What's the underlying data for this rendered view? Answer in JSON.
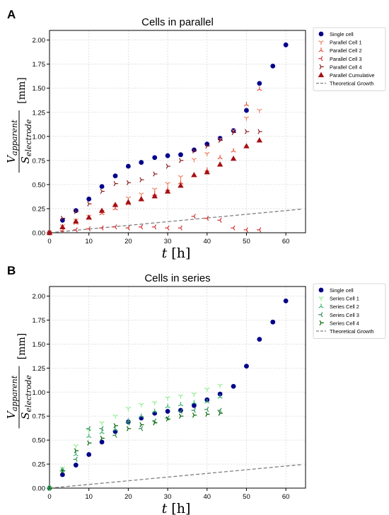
{
  "colors": {
    "single": "#00008b",
    "parallel_cell_1": "#f08060",
    "parallel_cell_2": "#e8503a",
    "parallel_cell_3": "#d32f2f",
    "parallel_cell_4": "#8b1a1a",
    "parallel_cumulative": "#a50f15",
    "series_cell_1": "#90ee90",
    "series_cell_2": "#3cb371",
    "series_cell_3": "#2e8b57",
    "series_cell_4": "#006400",
    "theory": "#808080",
    "grid": "#d9d9d9",
    "axis": "#000000"
  },
  "chart_data": [
    {
      "panel_label": "A",
      "type": "scatter",
      "title": "Cells in parallel",
      "ylabel_main": "V",
      "ylabel_num_sub": "apparent",
      "ylabel_den_main": "S",
      "ylabel_den_sub": "electrode",
      "ylabel_unit": "[mm]",
      "xlabel_main": "t",
      "xlabel_unit": "[h]",
      "xlim": [
        0,
        65
      ],
      "ylim": [
        0,
        2.1
      ],
      "xticks": [
        "0",
        "10",
        "20",
        "30",
        "40",
        "50",
        "60"
      ],
      "yticks": [
        "0.00",
        "0.25",
        "0.50",
        "0.75",
        "1.00",
        "1.25",
        "1.50",
        "1.75",
        "2.00"
      ],
      "grid": true,
      "legend_position": "right",
      "series": [
        {
          "name": "Single cell",
          "marker": "circle",
          "color_key": "single",
          "x": [
            0,
            3.3,
            6.7,
            10,
            13.3,
            16.7,
            20,
            23.3,
            26.7,
            30,
            33.3,
            36.7,
            40,
            43.3,
            46.7,
            50,
            53.3,
            56.7,
            60
          ],
          "y": [
            0,
            0.13,
            0.23,
            0.35,
            0.48,
            0.59,
            0.69,
            0.73,
            0.78,
            0.8,
            0.81,
            0.86,
            0.92,
            0.98,
            1.06,
            1.27,
            1.55,
            1.73,
            1.95
          ]
        },
        {
          "name": "Parallel Cell 1",
          "marker": "tri-down",
          "color_key": "parallel_cell_1",
          "x": [
            0,
            3.3,
            6.7,
            10,
            13.3,
            16.7,
            20,
            23.3,
            26.7,
            30,
            33.3,
            36.7,
            40,
            43.3,
            46.7,
            50,
            53.3
          ],
          "y": [
            0,
            0.07,
            0.13,
            0.17,
            0.22,
            0.28,
            0.36,
            0.4,
            0.45,
            0.51,
            0.58,
            0.76,
            0.82,
            0.97,
            1.06,
            1.19,
            1.27
          ]
        },
        {
          "name": "Parallel Cell 2",
          "marker": "tri-up",
          "color_key": "parallel_cell_2",
          "x": [
            0,
            3.3,
            6.7,
            10,
            13.3,
            16.7,
            20,
            23.3,
            26.7,
            30,
            33.3,
            36.7,
            40,
            43.3,
            46.7,
            50,
            53.3
          ],
          "y": [
            0,
            0.06,
            0.1,
            0.15,
            0.2,
            0.25,
            0.3,
            0.35,
            0.4,
            0.45,
            0.52,
            0.6,
            0.65,
            0.78,
            0.85,
            1.33,
            1.49
          ]
        },
        {
          "name": "Parallel Cell 3",
          "marker": "tri-left",
          "color_key": "parallel_cell_3",
          "x": [
            0,
            3.3,
            6.7,
            10,
            13.3,
            16.7,
            20,
            23.3,
            26.7,
            30,
            33.3,
            36.7,
            40,
            43.3,
            46.7,
            50,
            53.3
          ],
          "y": [
            0,
            0.02,
            0.03,
            0.04,
            0.05,
            0.06,
            0.05,
            0.06,
            0.06,
            0.05,
            0.05,
            0.17,
            0.15,
            0.13,
            0.05,
            0.03,
            0.03
          ]
        },
        {
          "name": "Parallel Cell 4",
          "marker": "tri-right",
          "color_key": "parallel_cell_4",
          "x": [
            0,
            3.3,
            6.7,
            10,
            13.3,
            16.7,
            20,
            23.3,
            26.7,
            30,
            33.3,
            36.7,
            40,
            43.3,
            46.7,
            50,
            53.3
          ],
          "y": [
            0,
            0.15,
            0.22,
            0.3,
            0.43,
            0.51,
            0.52,
            0.55,
            0.61,
            0.69,
            0.75,
            0.85,
            0.9,
            0.96,
            1.04,
            1.05,
            1.05
          ]
        },
        {
          "name": "Parallel Cumulative",
          "marker": "triangle",
          "color_key": "parallel_cumulative",
          "x": [
            0,
            3.3,
            6.7,
            10,
            13.3,
            16.7,
            20,
            23.3,
            26.7,
            30,
            33.3,
            36.7,
            40,
            43.3,
            46.7,
            50,
            53.3
          ],
          "y": [
            0,
            0.06,
            0.12,
            0.16,
            0.23,
            0.29,
            0.32,
            0.35,
            0.38,
            0.43,
            0.49,
            0.6,
            0.63,
            0.71,
            0.77,
            0.9,
            0.96
          ]
        }
      ],
      "theory": {
        "name": "Theoretical Growth",
        "x": [
          0,
          64
        ],
        "y": [
          0,
          0.245
        ]
      }
    },
    {
      "panel_label": "B",
      "type": "scatter",
      "title": "Cells in series",
      "ylabel_main": "V",
      "ylabel_num_sub": "apparent",
      "ylabel_den_main": "S",
      "ylabel_den_sub": "electrode",
      "ylabel_unit": "[mm]",
      "xlabel_main": "t",
      "xlabel_unit": "[h]",
      "xlim": [
        0,
        65
      ],
      "ylim": [
        0,
        2.1
      ],
      "xticks": [
        "0",
        "10",
        "20",
        "30",
        "40",
        "50",
        "60"
      ],
      "yticks": [
        "0.00",
        "0.25",
        "0.50",
        "0.75",
        "1.00",
        "1.25",
        "1.50",
        "1.75",
        "2.00"
      ],
      "grid": true,
      "legend_position": "right",
      "series": [
        {
          "name": "Single cell",
          "marker": "circle",
          "color_key": "single",
          "x": [
            0,
            3.3,
            6.7,
            10,
            13.3,
            16.7,
            20,
            23.3,
            26.7,
            30,
            33.3,
            36.7,
            40,
            43.3,
            46.7,
            50,
            53.3,
            56.7,
            60
          ],
          "y": [
            0,
            0.14,
            0.24,
            0.35,
            0.48,
            0.59,
            0.69,
            0.73,
            0.78,
            0.8,
            0.81,
            0.86,
            0.92,
            0.98,
            1.06,
            1.27,
            1.55,
            1.73,
            1.95
          ]
        },
        {
          "name": "Series Cell 1",
          "marker": "tri-down",
          "color_key": "series_cell_1",
          "x": [
            0,
            3.3,
            6.7,
            10,
            13.3,
            16.7,
            20,
            23.3,
            26.7,
            30,
            33.3,
            36.7,
            40,
            43.3
          ],
          "y": [
            0,
            0.21,
            0.44,
            0.6,
            0.68,
            0.75,
            0.83,
            0.87,
            0.89,
            0.94,
            0.96,
            0.98,
            1.03,
            1.07
          ]
        },
        {
          "name": "Series Cell 2",
          "marker": "tri-up",
          "color_key": "series_cell_2",
          "x": [
            0,
            3.3,
            6.7,
            10,
            13.3,
            16.7,
            20,
            23.3,
            26.7,
            30,
            33.3,
            36.7,
            40,
            43.3
          ],
          "y": [
            0,
            0.19,
            0.35,
            0.54,
            0.58,
            0.61,
            0.7,
            0.75,
            0.8,
            0.85,
            0.87,
            0.89,
            0.9,
            0.95
          ]
        },
        {
          "name": "Series Cell 3",
          "marker": "tri-left",
          "color_key": "series_cell_3",
          "x": [
            0,
            3.3,
            6.7,
            10,
            13.3,
            16.7,
            20,
            23.3,
            26.7,
            30,
            33.3,
            36.7,
            40,
            43.3
          ],
          "y": [
            0,
            0.18,
            0.3,
            0.62,
            0.62,
            0.55,
            0.68,
            0.62,
            0.7,
            0.73,
            0.8,
            0.81,
            0.82,
            0.81
          ]
        },
        {
          "name": "Series Cell 4",
          "marker": "tri-right",
          "color_key": "series_cell_4",
          "x": [
            0,
            3.3,
            6.7,
            10,
            13.3,
            16.7,
            20,
            23.3,
            26.7,
            30,
            33.3,
            36.7,
            40,
            43.3
          ],
          "y": [
            0,
            0.18,
            0.39,
            0.47,
            0.52,
            0.65,
            0.62,
            0.66,
            0.68,
            0.72,
            0.75,
            0.76,
            0.77,
            0.78
          ]
        }
      ],
      "theory": {
        "name": "Theoretical Growth",
        "x": [
          0,
          64
        ],
        "y": [
          0,
          0.245
        ]
      }
    }
  ]
}
